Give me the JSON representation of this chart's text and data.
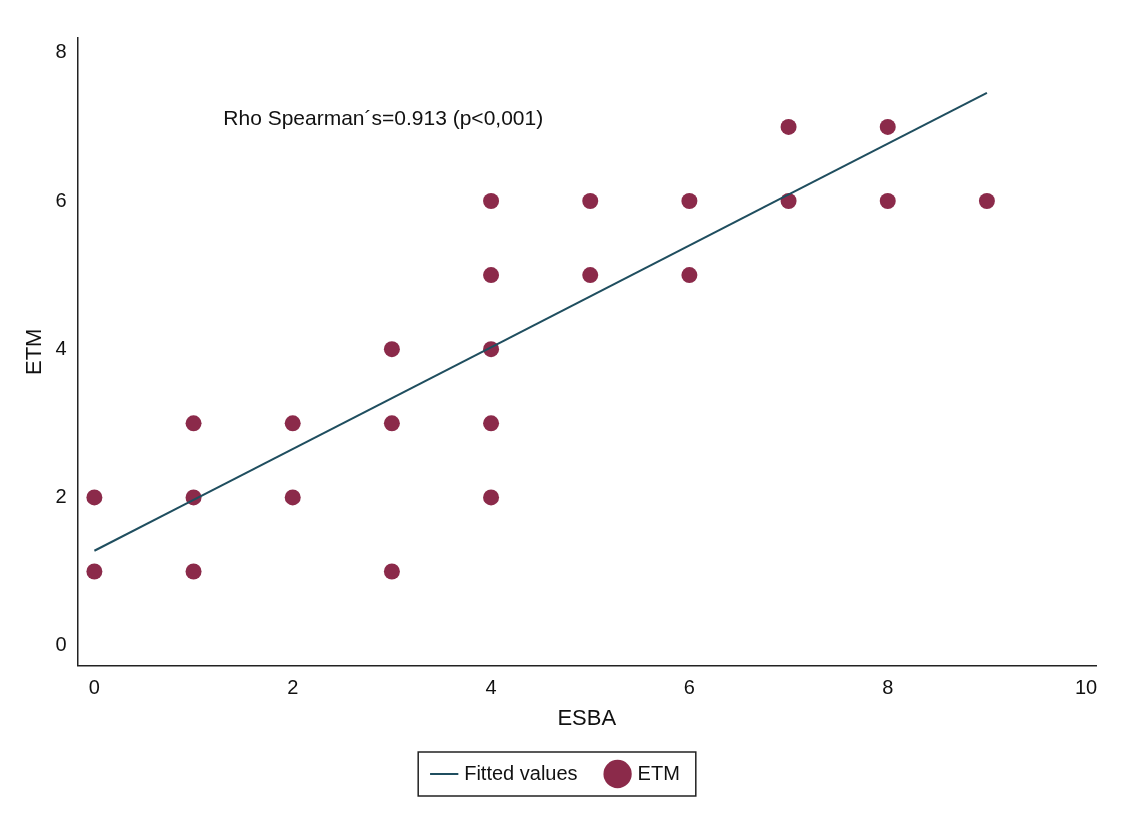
{
  "chart_data": {
    "type": "scatter",
    "xlabel": "ESBA",
    "ylabel": "ETM",
    "annotations": [
      "Rho Spearman´s=0.913 (p<0,001)"
    ],
    "xlim": [
      -0.17,
      10.1
    ],
    "ylim": [
      -0.27,
      8.2
    ],
    "xticks": [
      0,
      2,
      4,
      6,
      8,
      10
    ],
    "yticks": [
      0,
      2,
      4,
      6,
      8
    ],
    "grid": false,
    "legend": "bottom",
    "marker": "circle",
    "series": [
      {
        "name": "Fitted values",
        "type": "line",
        "color": "#1f4e5f",
        "x": [
          0,
          9
        ],
        "values": [
          1.28,
          7.46
        ],
        "marker": "none",
        "line_style": "solid"
      },
      {
        "name": "ETM",
        "type": "scatter",
        "color": "#8b2a4a",
        "x": [
          0,
          0,
          1,
          1,
          1,
          2,
          2,
          3,
          3,
          3,
          4,
          4,
          4,
          4,
          4,
          5,
          5,
          6,
          6,
          7,
          7,
          8,
          8,
          9
        ],
        "values": [
          2,
          1,
          3,
          2,
          1,
          3,
          2,
          4,
          3,
          1,
          6,
          5,
          4,
          3,
          2,
          6,
          5,
          6,
          5,
          7,
          6,
          7,
          6,
          6
        ]
      }
    ]
  }
}
